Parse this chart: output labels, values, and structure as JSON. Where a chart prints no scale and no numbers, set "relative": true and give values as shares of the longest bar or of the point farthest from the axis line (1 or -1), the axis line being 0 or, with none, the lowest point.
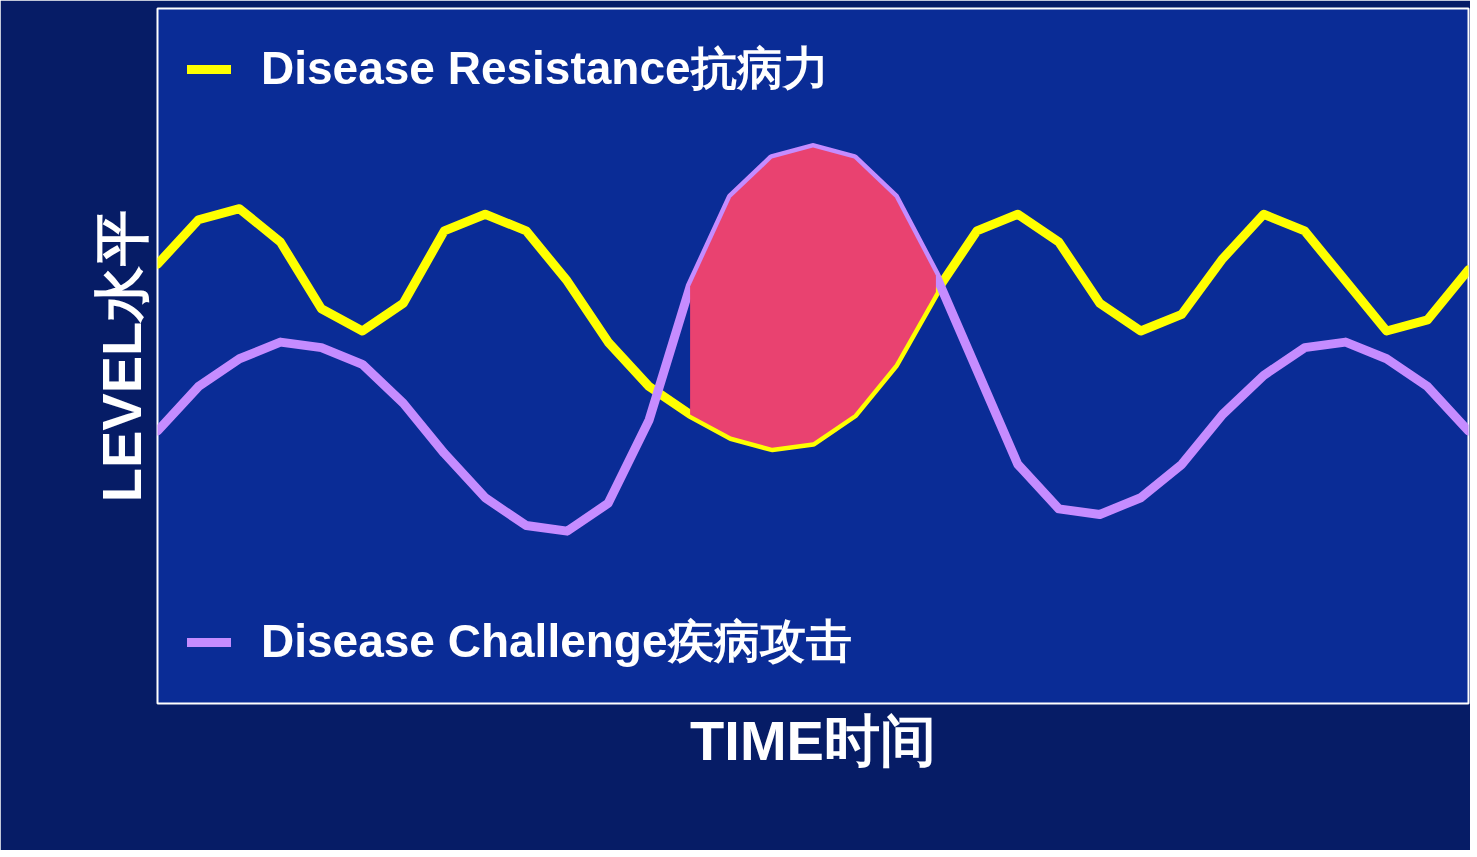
{
  "chart_data": {
    "type": "line",
    "relative": true,
    "xlabel": "TIME时间",
    "ylabel": "LEVEL水平",
    "legend": "left",
    "categories": [
      null,
      null,
      null,
      null,
      null,
      null,
      null,
      null,
      null,
      null,
      null,
      null,
      null,
      null,
      null,
      null,
      null,
      null,
      null,
      null,
      null,
      null,
      null,
      null,
      null,
      null,
      null,
      null,
      null,
      null,
      null,
      null,
      null
    ],
    "series": [
      {
        "name": "Disease Resistance抗病力",
        "color": "#ffff00",
        "values": [
          0.79,
          0.87,
          0.89,
          0.83,
          0.71,
          0.67,
          0.72,
          0.85,
          0.88,
          0.85,
          0.76,
          0.65,
          0.57,
          0.52,
          0.48,
          0.46,
          0.47,
          0.52,
          0.61,
          0.74,
          0.85,
          0.88,
          0.83,
          0.72,
          0.67,
          0.7,
          0.8,
          0.88,
          0.85,
          0.76,
          0.67,
          0.69,
          0.78
        ]
      },
      {
        "name": "Disease Challenge疾病攻击",
        "color": "#c58cff",
        "values": [
          0.49,
          0.57,
          0.62,
          0.65,
          0.64,
          0.61,
          0.54,
          0.45,
          0.37,
          0.32,
          0.31,
          0.36,
          0.51,
          0.75,
          0.91,
          0.98,
          1.0,
          0.98,
          0.91,
          0.77,
          0.6,
          0.43,
          0.35,
          0.34,
          0.37,
          0.43,
          0.52,
          0.59,
          0.64,
          0.65,
          0.62,
          0.57,
          0.49
        ]
      },
      {
        "type": "area",
        "color": "#e94270",
        "values": [
          null,
          null,
          null,
          null,
          null,
          null,
          null,
          null,
          null,
          null,
          null,
          null,
          null,
          0.75,
          0.91,
          0.98,
          1.0,
          0.98,
          0.91,
          0.77,
          null,
          null,
          null,
          null,
          null,
          null,
          null,
          null,
          null,
          null,
          null,
          null,
          null
        ]
      }
    ]
  }
}
